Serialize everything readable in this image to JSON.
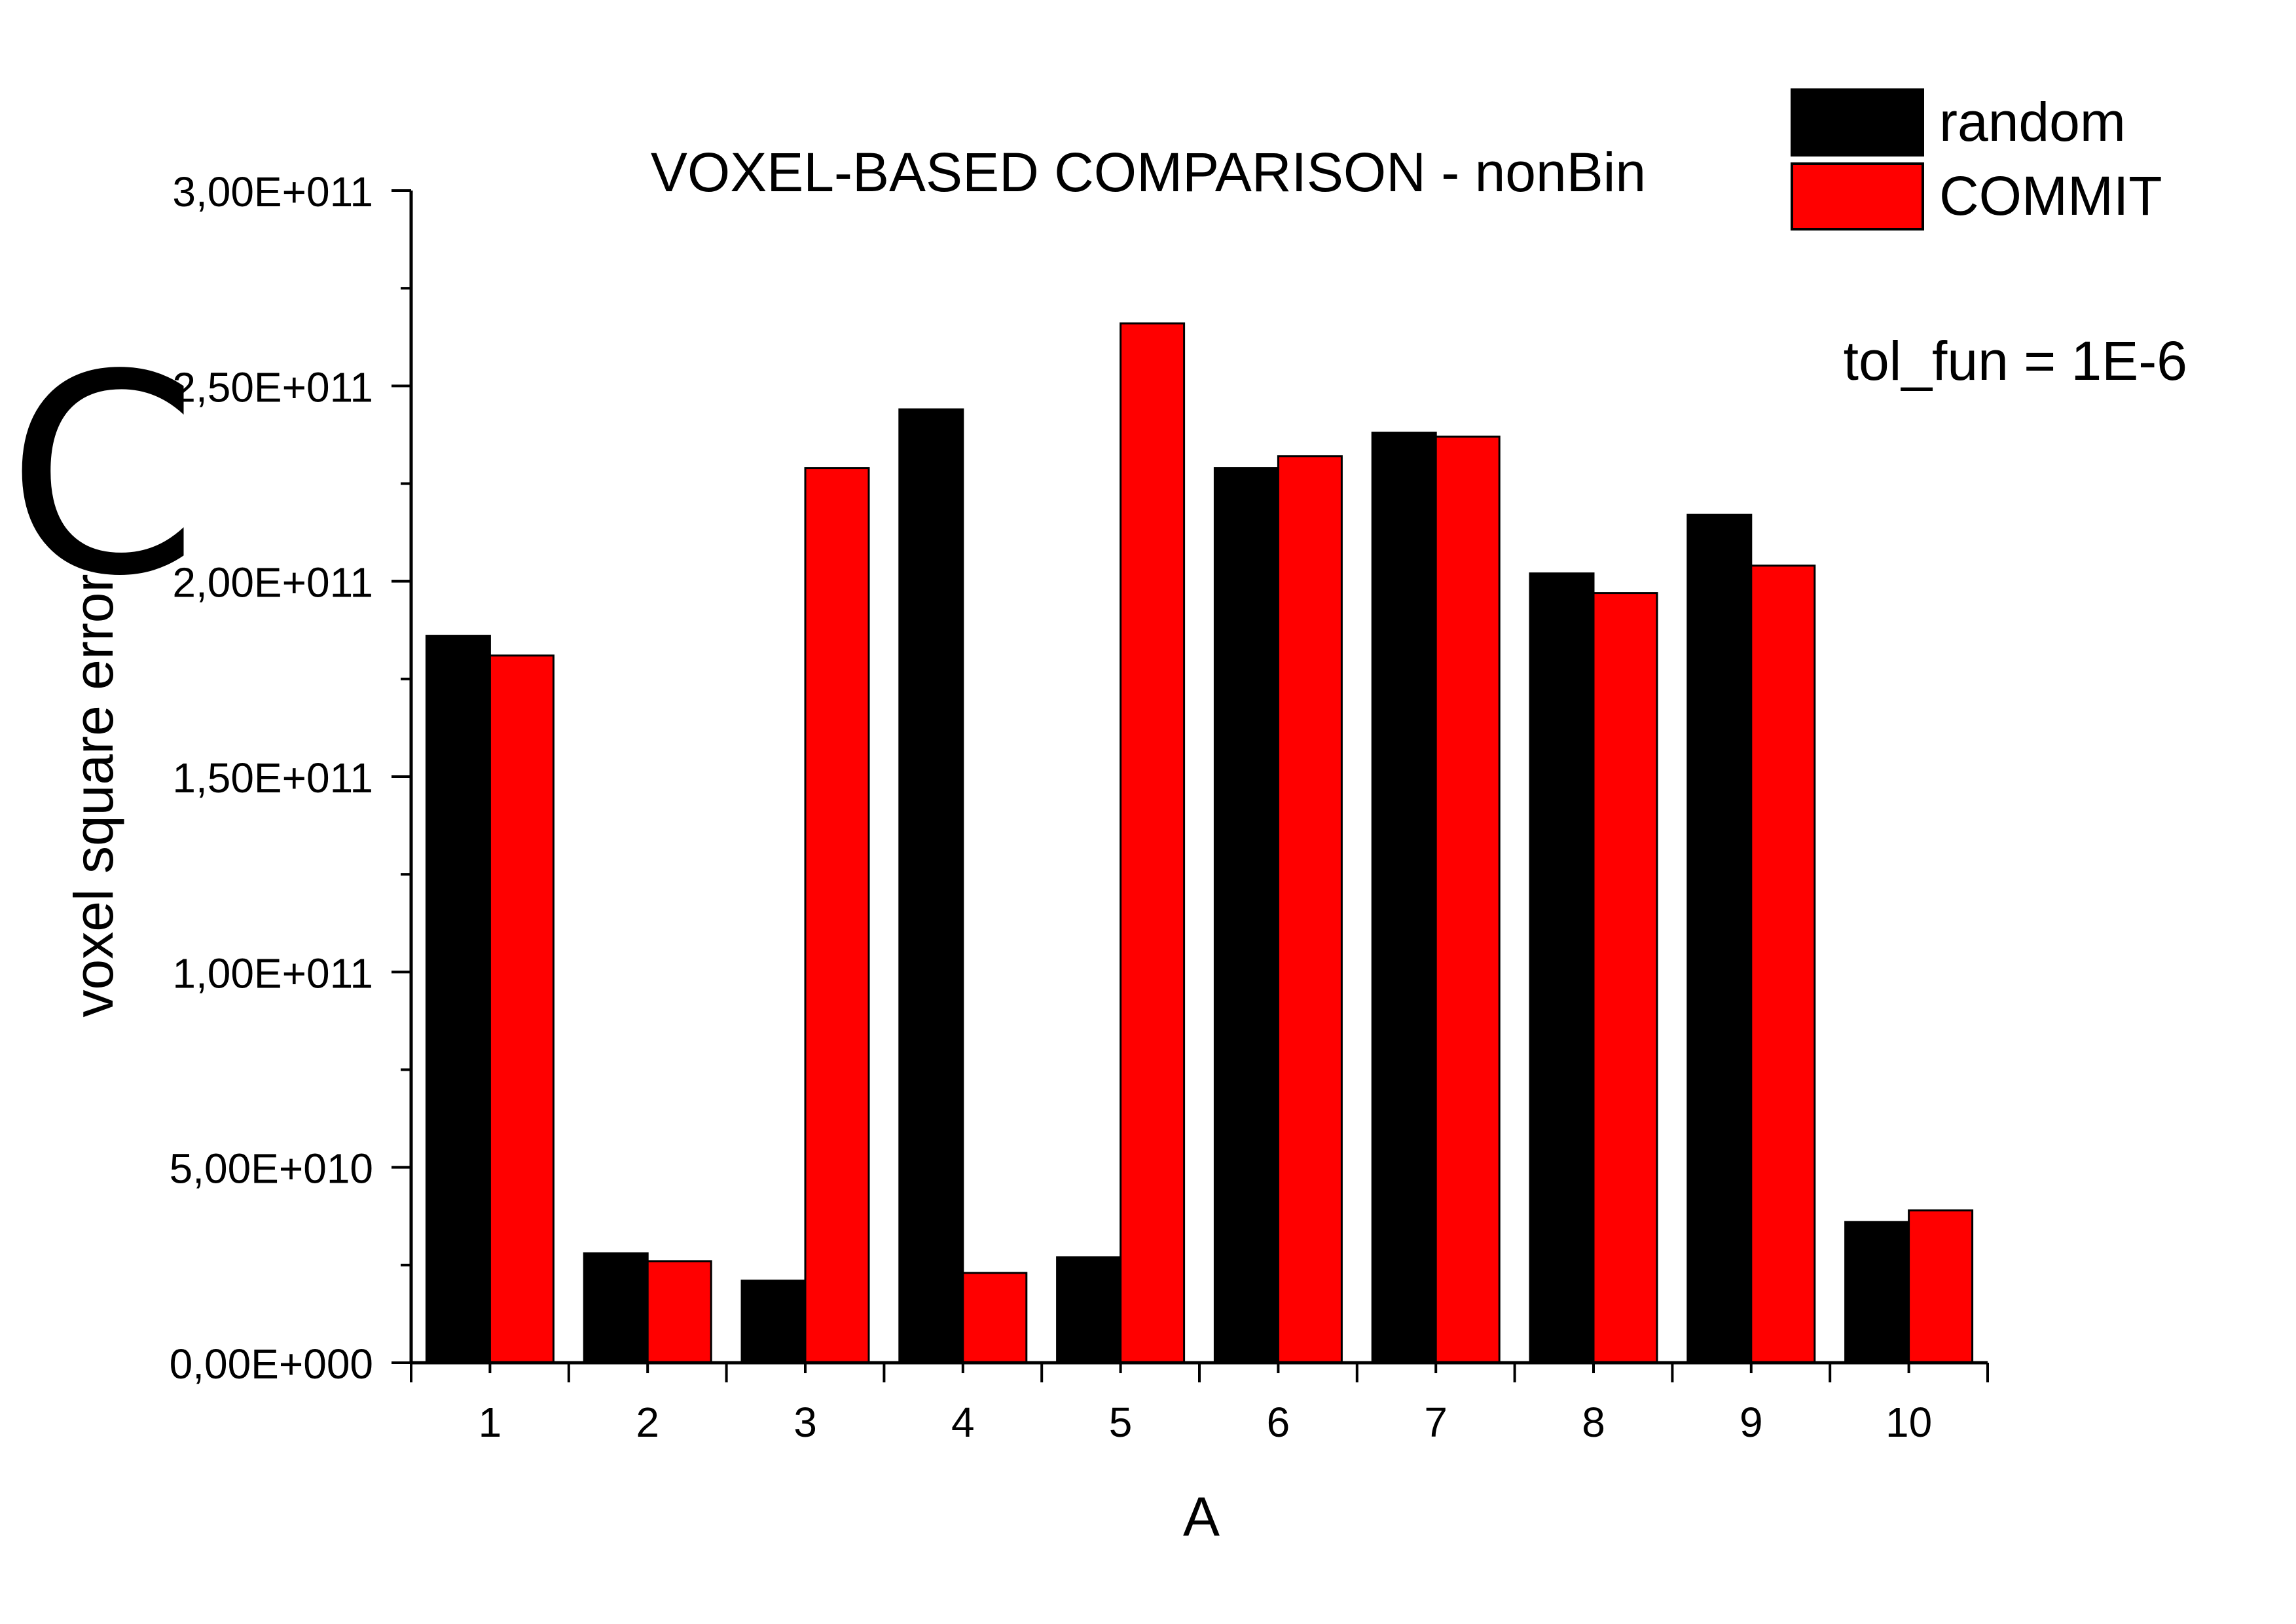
{
  "panel_label": "C",
  "annotation": "tol_fun = 1E-6",
  "chart_data": {
    "type": "bar",
    "title": "VOXEL-BASED COMPARISON - nonBin",
    "xlabel": "A",
    "ylabel": "voxel square error",
    "categories": [
      "1",
      "2",
      "3",
      "4",
      "5",
      "6",
      "7",
      "8",
      "9",
      "10"
    ],
    "series": [
      {
        "name": "random",
        "color": "#000000",
        "values": [
          186000000000.0,
          28000000000.0,
          21000000000.0,
          244000000000.0,
          27000000000.0,
          229000000000.0,
          238000000000.0,
          202000000000.0,
          217000000000.0,
          36000000000.0
        ]
      },
      {
        "name": "COMMIT",
        "color": "#ff0000",
        "values": [
          181000000000.0,
          26000000000.0,
          229000000000.0,
          23000000000.0,
          266000000000.0,
          232000000000.0,
          237000000000.0,
          197000000000.0,
          204000000000.0,
          39000000000.0
        ]
      }
    ],
    "ylim": [
      0,
      300000000000.0
    ],
    "yticks": [
      0,
      50000000000.0,
      100000000000.0,
      150000000000.0,
      200000000000.0,
      250000000000.0,
      300000000000.0
    ],
    "ytick_labels": [
      "0,00E+000",
      "5,00E+010",
      "1,00E+011",
      "1,50E+011",
      "2,00E+011",
      "2,50E+011",
      "3,00E+011"
    ],
    "grid": false,
    "legend_position": "top-right"
  }
}
